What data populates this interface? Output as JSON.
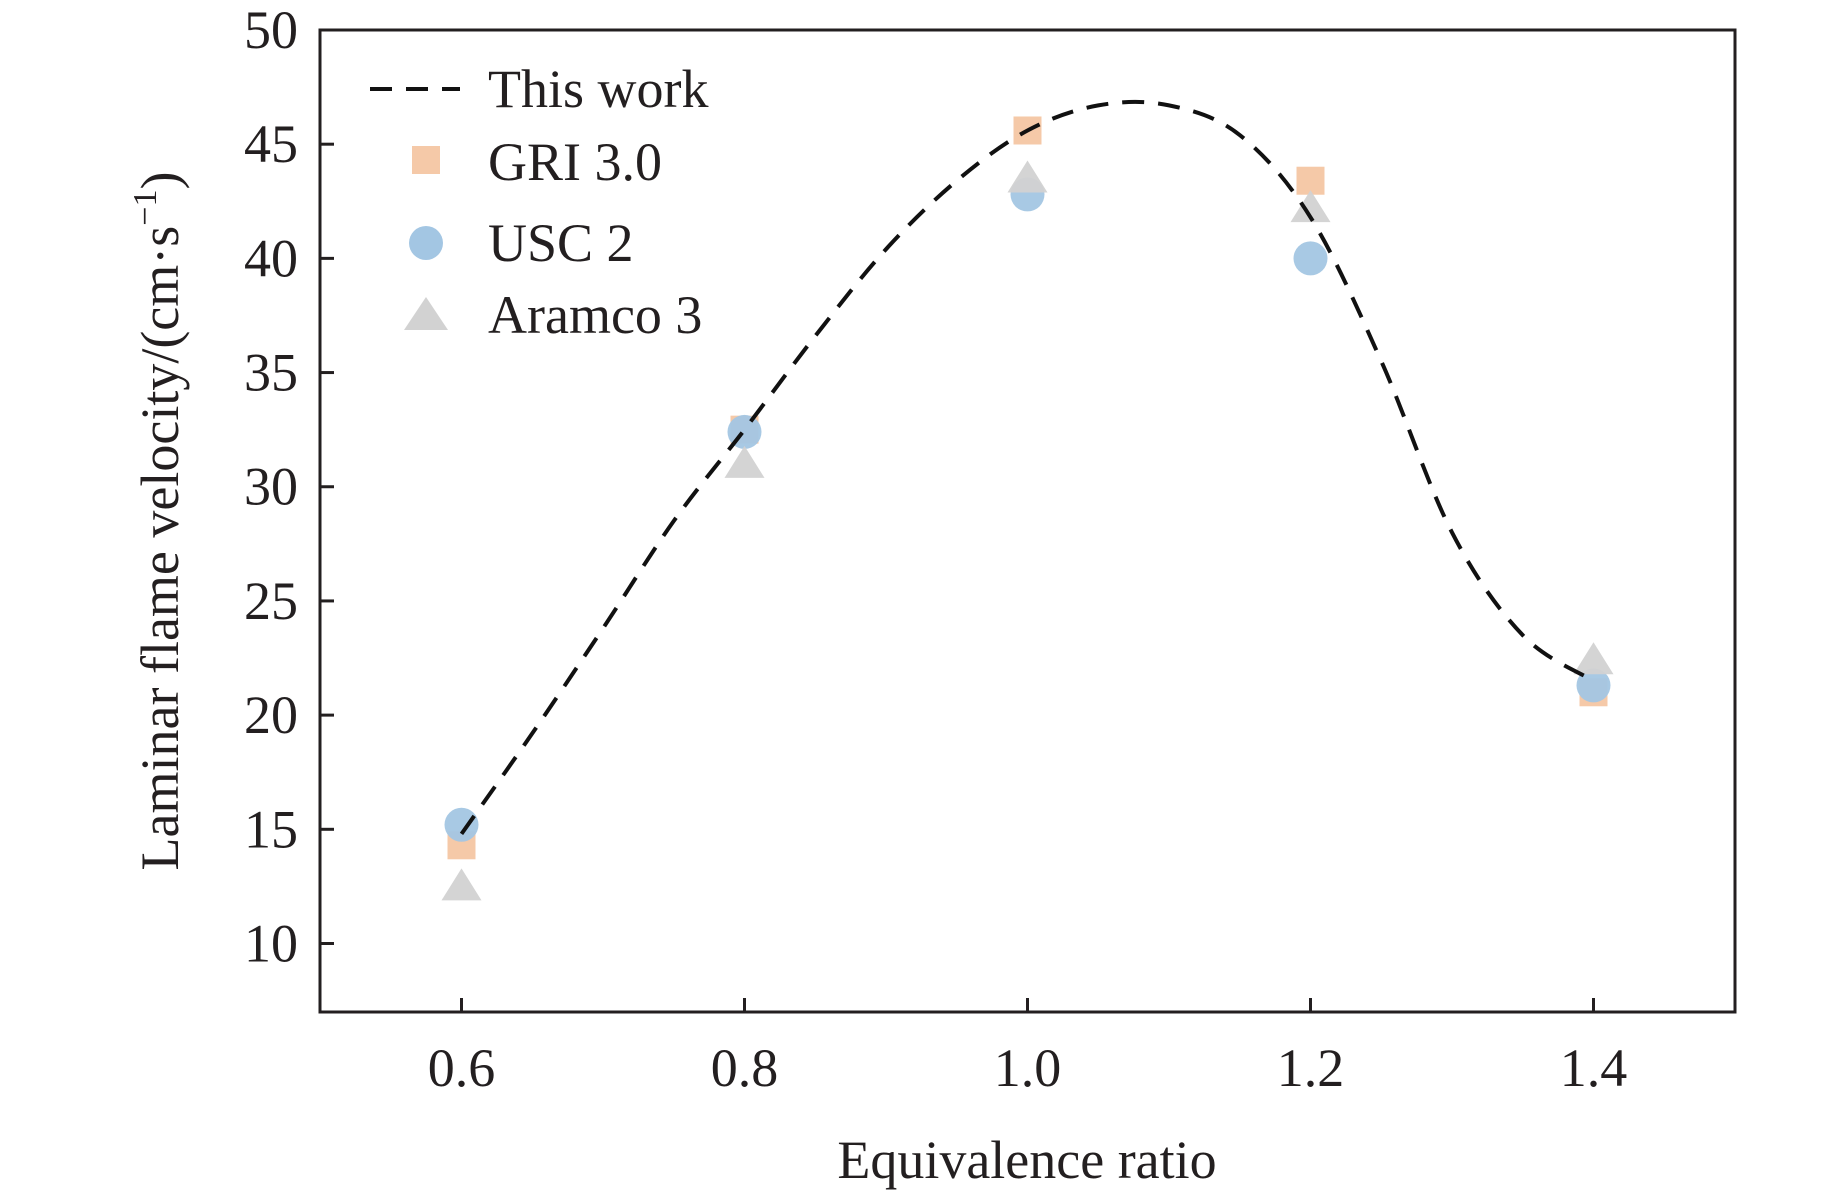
{
  "chart_data": {
    "type": "scatter",
    "xlabel": "Equivalence ratio",
    "ylabel_main": "Laminar flame velocity/(cm·s",
    "ylabel_sup": "−1",
    "ylabel_close": ")",
    "xlim": [
      0.5,
      1.5
    ],
    "ylim": [
      7,
      50
    ],
    "xticks": [
      "0.6",
      "0.8",
      "1.0",
      "1.2",
      "1.4"
    ],
    "yticks": [
      "10",
      "15",
      "20",
      "25",
      "30",
      "35",
      "40",
      "45",
      "50"
    ],
    "grid": false,
    "legend_position": "top-left",
    "series": [
      {
        "name": "This work",
        "kind": "dashed-line",
        "color": "#111111",
        "x": [
          0.6,
          0.65,
          0.7,
          0.75,
          0.8,
          0.85,
          0.9,
          0.95,
          1.0,
          1.05,
          1.1,
          1.15,
          1.2,
          1.25,
          1.3,
          1.35,
          1.4
        ],
        "y": [
          14.8,
          19.2,
          23.8,
          28.5,
          32.5,
          36.6,
          40.4,
          43.4,
          45.6,
          46.7,
          46.7,
          45.4,
          41.8,
          35.5,
          28.0,
          23.5,
          21.5
        ]
      },
      {
        "name": "GRI 3.0",
        "kind": "square",
        "color": "#f5c9a8",
        "x": [
          0.6,
          0.8,
          1.0,
          1.2,
          1.4
        ],
        "y": [
          14.3,
          32.5,
          45.6,
          43.4,
          21.0
        ]
      },
      {
        "name": "USC 2",
        "kind": "circle",
        "color": "#a3c6e3",
        "x": [
          0.6,
          0.8,
          1.0,
          1.2,
          1.4
        ],
        "y": [
          15.2,
          32.4,
          42.8,
          40.0,
          21.3
        ]
      },
      {
        "name": "Aramco 3",
        "kind": "triangle",
        "color": "#d2d2d2",
        "x": [
          0.6,
          0.8,
          1.0,
          1.2,
          1.4
        ],
        "y": [
          12.5,
          31.0,
          43.5,
          42.2,
          22.4
        ]
      }
    ]
  }
}
